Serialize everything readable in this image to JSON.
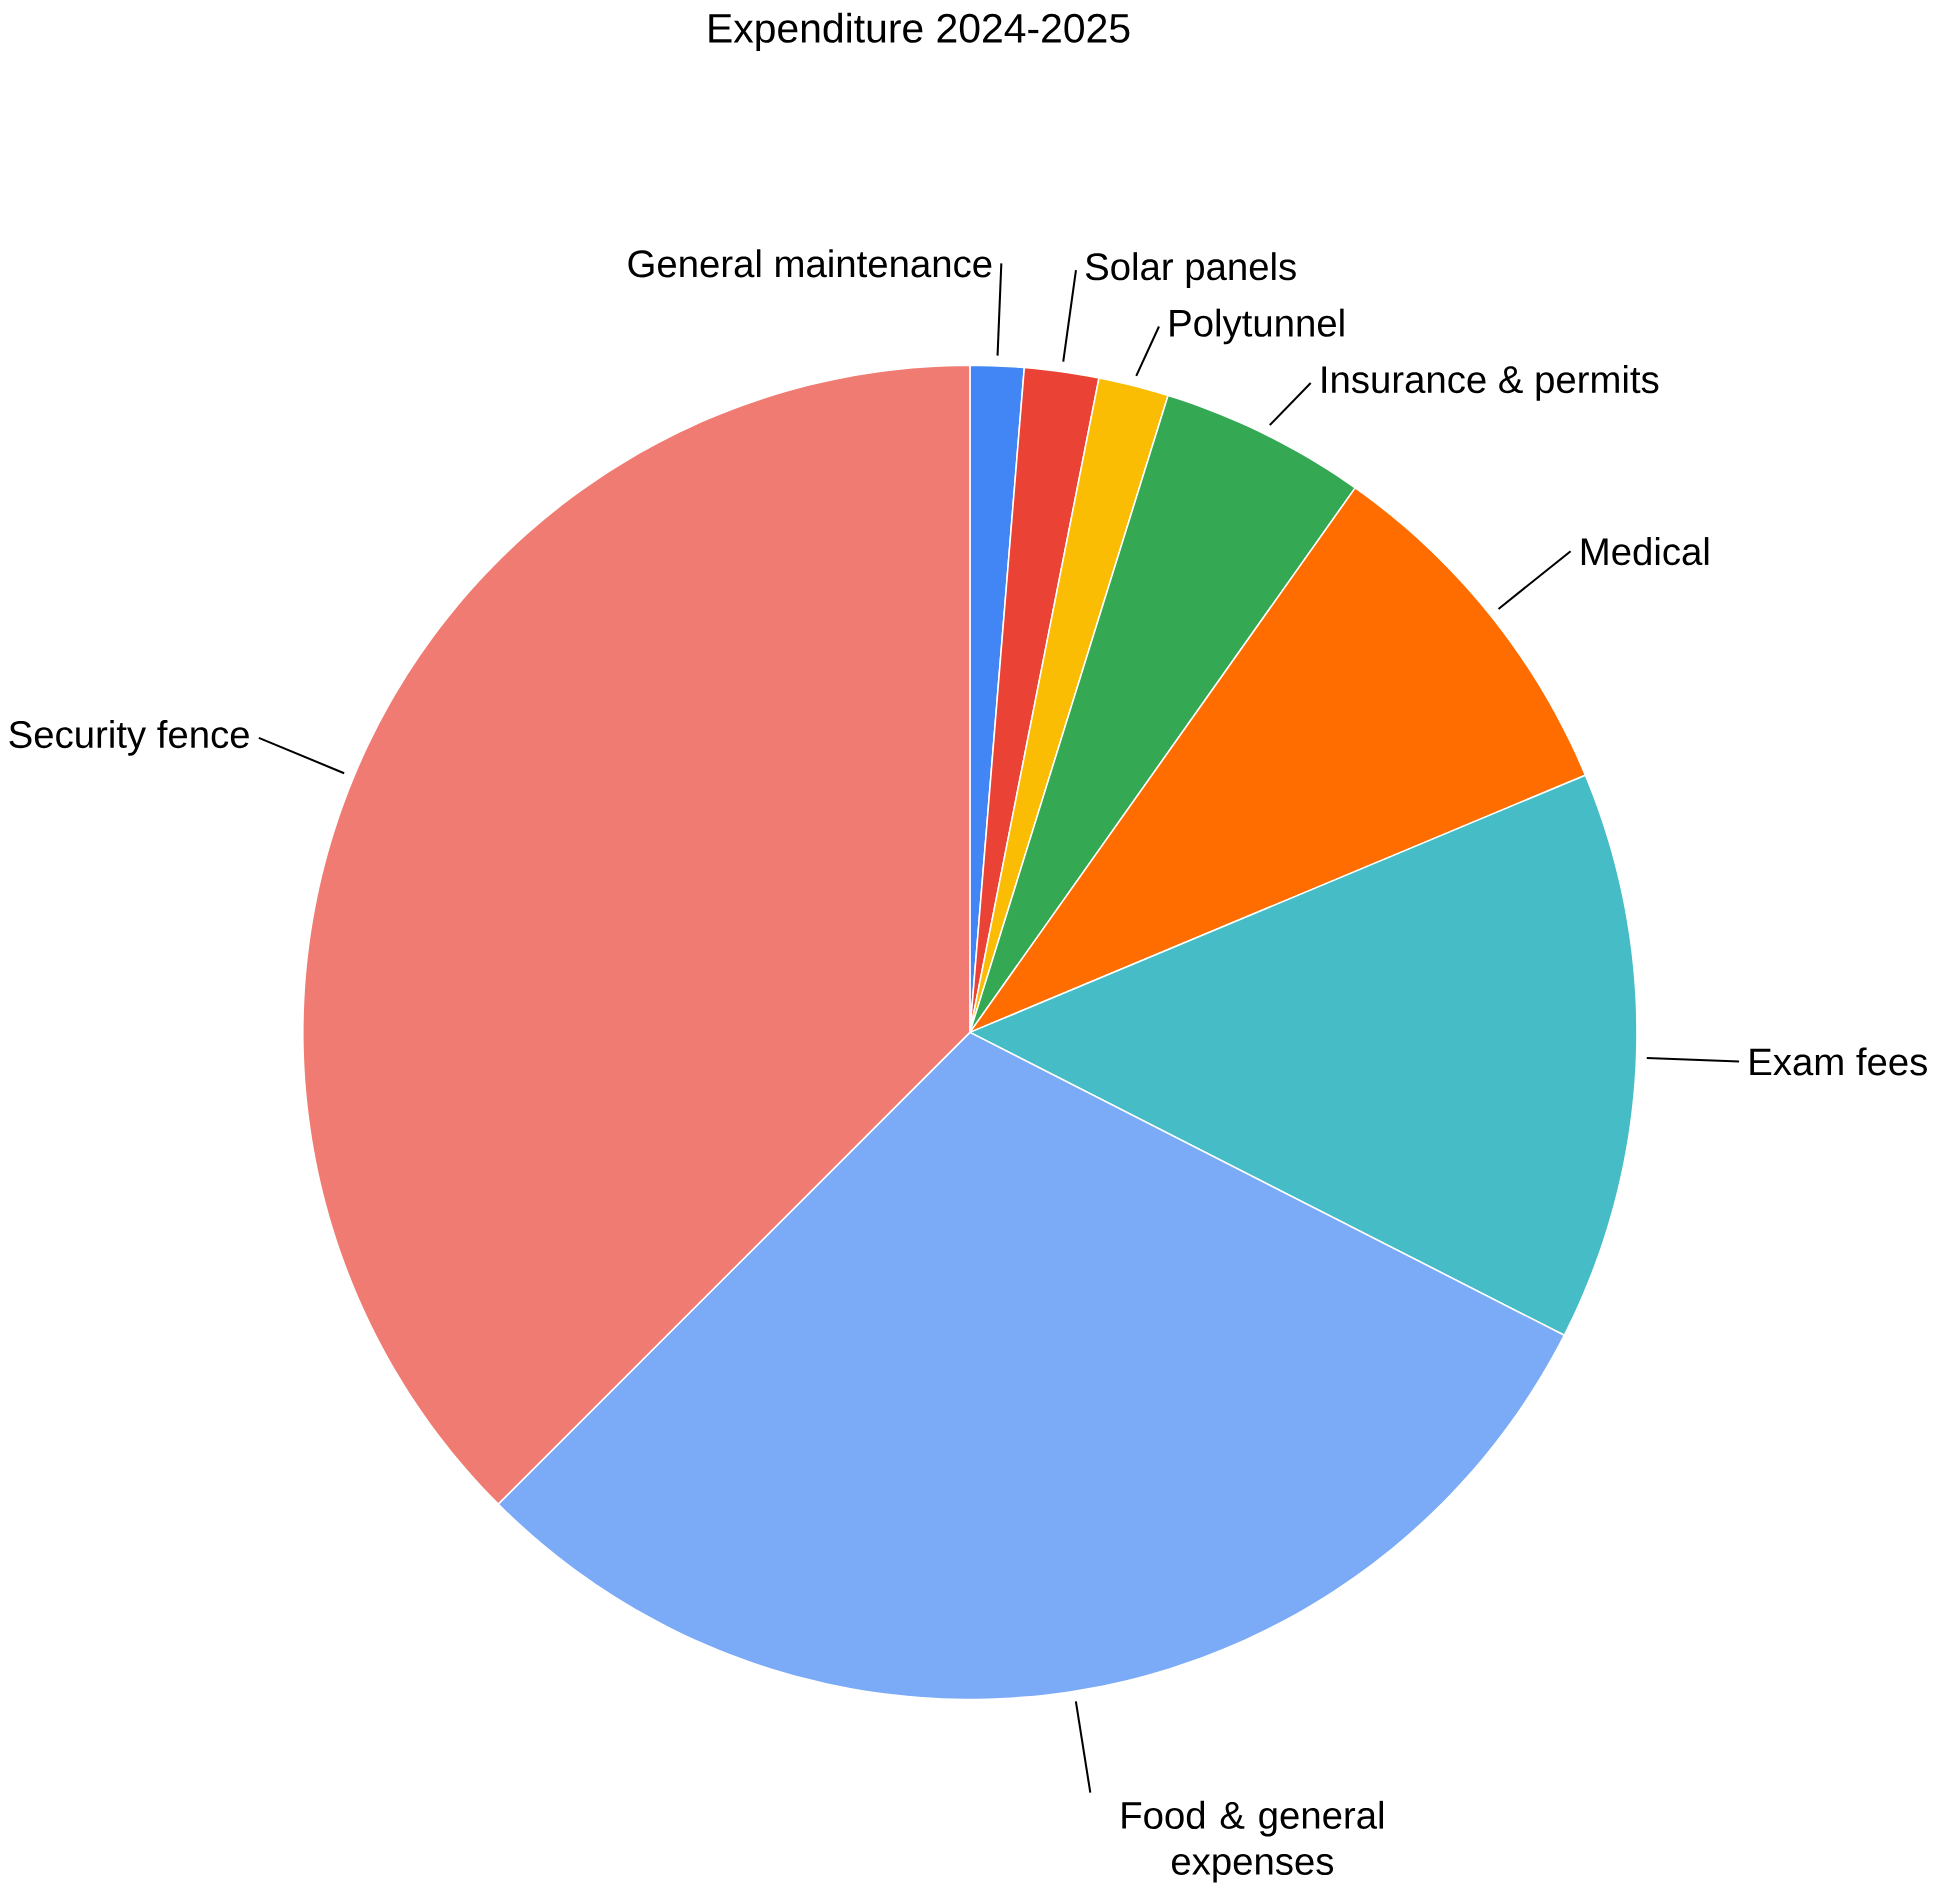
{
  "chart_data": {
    "type": "pie",
    "title": "Expenditure 2024-2025",
    "categories": [
      "General maintenance",
      "Solar panels",
      "Polytunnel",
      "Insurance & permits",
      "Medical",
      "Exam fees",
      "Food & general expenses",
      "Security fence"
    ],
    "values": [
      1.3,
      1.8,
      1.7,
      5.0,
      8.9,
      13.8,
      30.0,
      37.5
    ],
    "colors": [
      "#4285f4",
      "#ea4335",
      "#fbbc04",
      "#34a853",
      "#ff6d01",
      "#46bdc6",
      "#7baaf7",
      "#f07b72"
    ]
  }
}
